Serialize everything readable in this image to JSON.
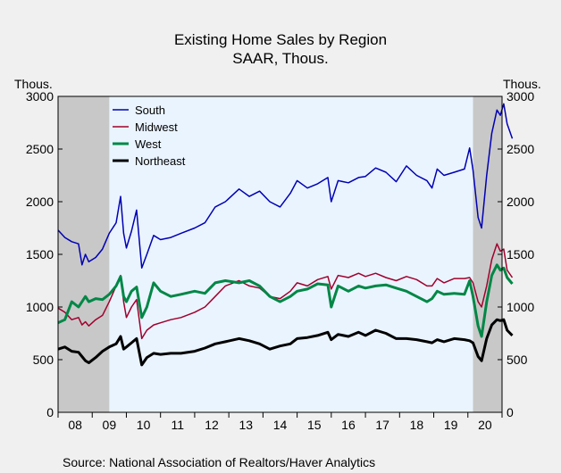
{
  "chart_data": {
    "type": "line",
    "title": "Existing Home Sales by Region",
    "subtitle": "SAAR, Thous.",
    "ylabel_left": "Thous.",
    "ylabel_right": "Thous.",
    "source": "Source:  National Association of Realtors/Haver Analytics",
    "ylim": [
      0,
      3000
    ],
    "yticks": [
      "0",
      "500",
      "1000",
      "1500",
      "2000",
      "2500",
      "3000"
    ],
    "xlim": [
      2008.0,
      2021.0
    ],
    "xticks": [
      "08",
      "09",
      "10",
      "11",
      "12",
      "13",
      "14",
      "15",
      "16",
      "17",
      "18",
      "19",
      "20"
    ],
    "grid": false,
    "legend_position": "top-left",
    "recessions": [
      [
        2008.0,
        2009.5
      ],
      [
        2020.15,
        2021.0
      ]
    ],
    "colors": {
      "background": "#f0f0f0",
      "plot_bg": "#eaf4ff",
      "recession": "#c8c8c8",
      "axis": "#000000"
    },
    "series": [
      {
        "name": "South",
        "color": "#0000b4",
        "width": 1.5,
        "points": [
          [
            2008.0,
            1730
          ],
          [
            2008.2,
            1660
          ],
          [
            2008.4,
            1620
          ],
          [
            2008.6,
            1600
          ],
          [
            2008.7,
            1400
          ],
          [
            2008.8,
            1500
          ],
          [
            2008.9,
            1430
          ],
          [
            2009.1,
            1470
          ],
          [
            2009.3,
            1550
          ],
          [
            2009.5,
            1700
          ],
          [
            2009.7,
            1800
          ],
          [
            2009.83,
            2050
          ],
          [
            2009.92,
            1700
          ],
          [
            2010.0,
            1560
          ],
          [
            2010.15,
            1720
          ],
          [
            2010.3,
            1920
          ],
          [
            2010.45,
            1370
          ],
          [
            2010.6,
            1500
          ],
          [
            2010.8,
            1680
          ],
          [
            2011.0,
            1640
          ],
          [
            2011.3,
            1660
          ],
          [
            2011.6,
            1700
          ],
          [
            2012.0,
            1750
          ],
          [
            2012.3,
            1800
          ],
          [
            2012.6,
            1950
          ],
          [
            2012.9,
            2000
          ],
          [
            2013.3,
            2120
          ],
          [
            2013.6,
            2050
          ],
          [
            2013.9,
            2100
          ],
          [
            2014.2,
            2000
          ],
          [
            2014.5,
            1950
          ],
          [
            2014.8,
            2080
          ],
          [
            2015.0,
            2200
          ],
          [
            2015.3,
            2130
          ],
          [
            2015.6,
            2170
          ],
          [
            2015.9,
            2230
          ],
          [
            2016.0,
            2000
          ],
          [
            2016.2,
            2200
          ],
          [
            2016.5,
            2180
          ],
          [
            2016.8,
            2230
          ],
          [
            2017.0,
            2240
          ],
          [
            2017.3,
            2320
          ],
          [
            2017.6,
            2280
          ],
          [
            2017.9,
            2190
          ],
          [
            2018.2,
            2340
          ],
          [
            2018.5,
            2250
          ],
          [
            2018.8,
            2200
          ],
          [
            2018.95,
            2130
          ],
          [
            2019.1,
            2310
          ],
          [
            2019.3,
            2250
          ],
          [
            2019.6,
            2280
          ],
          [
            2019.9,
            2310
          ],
          [
            2020.05,
            2510
          ],
          [
            2020.15,
            2300
          ],
          [
            2020.3,
            1850
          ],
          [
            2020.4,
            1750
          ],
          [
            2020.55,
            2250
          ],
          [
            2020.7,
            2650
          ],
          [
            2020.85,
            2870
          ],
          [
            2020.95,
            2820
          ],
          [
            2021.05,
            2930
          ],
          [
            2021.15,
            2740
          ],
          [
            2021.3,
            2600
          ]
        ]
      },
      {
        "name": "Midwest",
        "color": "#a0002d",
        "width": 1.5,
        "points": [
          [
            2008.0,
            990
          ],
          [
            2008.2,
            950
          ],
          [
            2008.4,
            880
          ],
          [
            2008.6,
            900
          ],
          [
            2008.7,
            830
          ],
          [
            2008.8,
            860
          ],
          [
            2008.9,
            820
          ],
          [
            2009.1,
            880
          ],
          [
            2009.3,
            920
          ],
          [
            2009.5,
            1050
          ],
          [
            2009.7,
            1200
          ],
          [
            2009.83,
            1300
          ],
          [
            2009.92,
            1050
          ],
          [
            2010.0,
            900
          ],
          [
            2010.15,
            1000
          ],
          [
            2010.3,
            1070
          ],
          [
            2010.45,
            700
          ],
          [
            2010.6,
            780
          ],
          [
            2010.8,
            830
          ],
          [
            2011.0,
            850
          ],
          [
            2011.3,
            880
          ],
          [
            2011.6,
            900
          ],
          [
            2012.0,
            950
          ],
          [
            2012.3,
            1000
          ],
          [
            2012.6,
            1100
          ],
          [
            2012.9,
            1200
          ],
          [
            2013.3,
            1250
          ],
          [
            2013.6,
            1200
          ],
          [
            2013.9,
            1180
          ],
          [
            2014.2,
            1100
          ],
          [
            2014.5,
            1080
          ],
          [
            2014.8,
            1150
          ],
          [
            2015.0,
            1230
          ],
          [
            2015.3,
            1200
          ],
          [
            2015.6,
            1260
          ],
          [
            2015.9,
            1290
          ],
          [
            2016.0,
            1170
          ],
          [
            2016.2,
            1300
          ],
          [
            2016.5,
            1280
          ],
          [
            2016.8,
            1320
          ],
          [
            2017.0,
            1290
          ],
          [
            2017.3,
            1320
          ],
          [
            2017.6,
            1280
          ],
          [
            2017.9,
            1250
          ],
          [
            2018.2,
            1290
          ],
          [
            2018.5,
            1260
          ],
          [
            2018.8,
            1200
          ],
          [
            2018.95,
            1200
          ],
          [
            2019.1,
            1270
          ],
          [
            2019.3,
            1230
          ],
          [
            2019.6,
            1270
          ],
          [
            2019.9,
            1270
          ],
          [
            2020.05,
            1280
          ],
          [
            2020.15,
            1230
          ],
          [
            2020.3,
            1050
          ],
          [
            2020.4,
            1000
          ],
          [
            2020.55,
            1200
          ],
          [
            2020.7,
            1450
          ],
          [
            2020.85,
            1600
          ],
          [
            2020.95,
            1530
          ],
          [
            2021.05,
            1550
          ],
          [
            2021.15,
            1350
          ],
          [
            2021.3,
            1280
          ]
        ]
      },
      {
        "name": "West",
        "color": "#008746",
        "width": 3,
        "points": [
          [
            2008.0,
            850
          ],
          [
            2008.2,
            880
          ],
          [
            2008.4,
            1050
          ],
          [
            2008.6,
            1000
          ],
          [
            2008.7,
            1050
          ],
          [
            2008.8,
            1100
          ],
          [
            2008.9,
            1050
          ],
          [
            2009.1,
            1080
          ],
          [
            2009.3,
            1070
          ],
          [
            2009.5,
            1120
          ],
          [
            2009.7,
            1200
          ],
          [
            2009.83,
            1290
          ],
          [
            2009.92,
            1100
          ],
          [
            2010.0,
            1050
          ],
          [
            2010.15,
            1150
          ],
          [
            2010.3,
            1190
          ],
          [
            2010.45,
            900
          ],
          [
            2010.6,
            1000
          ],
          [
            2010.8,
            1230
          ],
          [
            2011.0,
            1150
          ],
          [
            2011.3,
            1100
          ],
          [
            2011.6,
            1120
          ],
          [
            2012.0,
            1150
          ],
          [
            2012.3,
            1130
          ],
          [
            2012.6,
            1230
          ],
          [
            2012.9,
            1250
          ],
          [
            2013.3,
            1230
          ],
          [
            2013.6,
            1250
          ],
          [
            2013.9,
            1200
          ],
          [
            2014.2,
            1100
          ],
          [
            2014.5,
            1050
          ],
          [
            2014.8,
            1100
          ],
          [
            2015.0,
            1150
          ],
          [
            2015.3,
            1170
          ],
          [
            2015.6,
            1220
          ],
          [
            2015.9,
            1210
          ],
          [
            2016.0,
            1000
          ],
          [
            2016.2,
            1200
          ],
          [
            2016.5,
            1150
          ],
          [
            2016.8,
            1200
          ],
          [
            2017.0,
            1180
          ],
          [
            2017.3,
            1200
          ],
          [
            2017.6,
            1210
          ],
          [
            2017.9,
            1180
          ],
          [
            2018.2,
            1150
          ],
          [
            2018.5,
            1100
          ],
          [
            2018.8,
            1050
          ],
          [
            2018.95,
            1080
          ],
          [
            2019.1,
            1150
          ],
          [
            2019.3,
            1120
          ],
          [
            2019.6,
            1130
          ],
          [
            2019.9,
            1120
          ],
          [
            2020.05,
            1250
          ],
          [
            2020.15,
            1100
          ],
          [
            2020.3,
            820
          ],
          [
            2020.4,
            720
          ],
          [
            2020.55,
            1050
          ],
          [
            2020.7,
            1300
          ],
          [
            2020.85,
            1400
          ],
          [
            2020.95,
            1350
          ],
          [
            2021.05,
            1370
          ],
          [
            2021.15,
            1280
          ],
          [
            2021.3,
            1220
          ]
        ]
      },
      {
        "name": "Northeast",
        "color": "#000000",
        "width": 3,
        "points": [
          [
            2008.0,
            600
          ],
          [
            2008.2,
            620
          ],
          [
            2008.4,
            580
          ],
          [
            2008.6,
            570
          ],
          [
            2008.7,
            530
          ],
          [
            2008.8,
            490
          ],
          [
            2008.9,
            470
          ],
          [
            2009.1,
            520
          ],
          [
            2009.3,
            580
          ],
          [
            2009.5,
            620
          ],
          [
            2009.7,
            650
          ],
          [
            2009.83,
            720
          ],
          [
            2009.92,
            600
          ],
          [
            2010.0,
            620
          ],
          [
            2010.15,
            660
          ],
          [
            2010.3,
            700
          ],
          [
            2010.45,
            450
          ],
          [
            2010.6,
            520
          ],
          [
            2010.8,
            560
          ],
          [
            2011.0,
            550
          ],
          [
            2011.3,
            560
          ],
          [
            2011.6,
            560
          ],
          [
            2012.0,
            580
          ],
          [
            2012.3,
            610
          ],
          [
            2012.6,
            650
          ],
          [
            2012.9,
            670
          ],
          [
            2013.3,
            700
          ],
          [
            2013.6,
            680
          ],
          [
            2013.9,
            650
          ],
          [
            2014.2,
            600
          ],
          [
            2014.5,
            630
          ],
          [
            2014.8,
            650
          ],
          [
            2015.0,
            700
          ],
          [
            2015.3,
            710
          ],
          [
            2015.6,
            730
          ],
          [
            2015.9,
            760
          ],
          [
            2016.0,
            690
          ],
          [
            2016.2,
            740
          ],
          [
            2016.5,
            720
          ],
          [
            2016.8,
            760
          ],
          [
            2017.0,
            730
          ],
          [
            2017.3,
            780
          ],
          [
            2017.6,
            750
          ],
          [
            2017.9,
            700
          ],
          [
            2018.2,
            700
          ],
          [
            2018.5,
            690
          ],
          [
            2018.8,
            670
          ],
          [
            2018.95,
            660
          ],
          [
            2019.1,
            690
          ],
          [
            2019.3,
            670
          ],
          [
            2019.6,
            700
          ],
          [
            2019.9,
            690
          ],
          [
            2020.05,
            680
          ],
          [
            2020.15,
            660
          ],
          [
            2020.3,
            530
          ],
          [
            2020.4,
            490
          ],
          [
            2020.55,
            700
          ],
          [
            2020.7,
            830
          ],
          [
            2020.85,
            880
          ],
          [
            2020.95,
            870
          ],
          [
            2021.05,
            880
          ],
          [
            2021.15,
            780
          ],
          [
            2021.3,
            730
          ]
        ]
      }
    ]
  }
}
